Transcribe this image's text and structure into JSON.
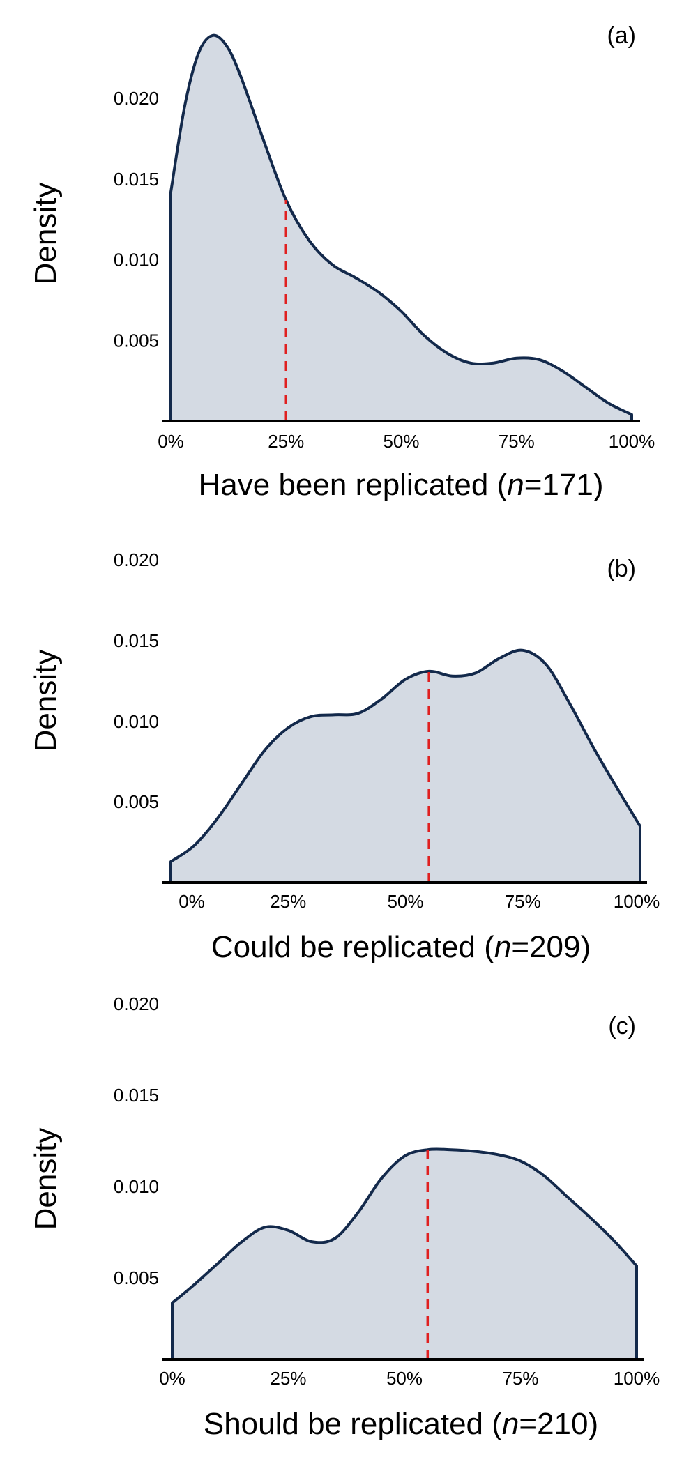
{
  "chart_data": [
    {
      "type": "area",
      "panel_label": "(a)",
      "ylabel": "Density",
      "xlabel_prefix": "Have been replicated (",
      "xlabel_italic": "n",
      "xlabel_suffix": "=171)",
      "xticks": [
        "0%",
        "25%",
        "50%",
        "75%",
        "100%"
      ],
      "ytick_values": [
        0.005,
        0.01,
        0.015,
        0.02
      ],
      "yticks": [
        "0.005",
        "0.010",
        "0.015",
        "0.020"
      ],
      "ylim": [
        0,
        0.024
      ],
      "median": 25,
      "fill": "#d4dae3",
      "line_color": "#13294b",
      "median_color": "#e02020",
      "x": [
        0,
        3,
        6,
        9,
        12,
        15,
        20,
        25,
        30,
        35,
        40,
        45,
        50,
        55,
        60,
        65,
        70,
        75,
        80,
        85,
        90,
        95,
        100
      ],
      "y": [
        0.0142,
        0.0195,
        0.0228,
        0.0239,
        0.0233,
        0.0215,
        0.0175,
        0.0137,
        0.0112,
        0.0097,
        0.0089,
        0.008,
        0.0068,
        0.0053,
        0.0042,
        0.0036,
        0.0036,
        0.0039,
        0.0038,
        0.0031,
        0.0021,
        0.0011,
        0.0004
      ]
    },
    {
      "type": "area",
      "panel_label": "(b)",
      "ylabel": "Density",
      "xlabel_prefix": "Could be replicated (",
      "xlabel_italic": "n",
      "xlabel_suffix": "=209)",
      "xticks": [
        "0%",
        "25%",
        "50%",
        "75%",
        "100%"
      ],
      "ytick_values": [
        0.005,
        0.01,
        0.015,
        0.02
      ],
      "yticks": [
        "0.005",
        "0.010",
        "0.015",
        "0.020"
      ],
      "ylim": [
        0,
        0.024
      ],
      "median": 55,
      "fill": "#d4dae3",
      "line_color": "#13294b",
      "median_color": "#e02020",
      "x": [
        0,
        5,
        10,
        15,
        20,
        25,
        30,
        35,
        40,
        45,
        50,
        55,
        60,
        65,
        70,
        75,
        80,
        85,
        90,
        95,
        100
      ],
      "y": [
        0.0013,
        0.0023,
        0.004,
        0.0061,
        0.0082,
        0.0096,
        0.0103,
        0.0104,
        0.0105,
        0.0114,
        0.0126,
        0.0131,
        0.0128,
        0.013,
        0.0139,
        0.0144,
        0.0135,
        0.0111,
        0.0084,
        0.0059,
        0.0035
      ]
    },
    {
      "type": "area",
      "panel_label": "(c)",
      "ylabel": "Density",
      "xlabel_prefix": "Should be replicated (",
      "xlabel_italic": "n",
      "xlabel_suffix": "=210)",
      "xticks": [
        "0%",
        "25%",
        "50%",
        "75%",
        "100%"
      ],
      "ytick_values": [
        0.005,
        0.01,
        0.015,
        0.02
      ],
      "yticks": [
        "0.005",
        "0.010",
        "0.015",
        "0.020"
      ],
      "ylim": [
        0,
        0.024
      ],
      "median": 55,
      "fill": "#d4dae3",
      "line_color": "#13294b",
      "median_color": "#e02020",
      "x": [
        0,
        5,
        10,
        15,
        20,
        25,
        30,
        35,
        40,
        45,
        50,
        55,
        60,
        65,
        70,
        75,
        80,
        85,
        90,
        95,
        100
      ],
      "y": [
        0.0035,
        0.0047,
        0.006,
        0.0073,
        0.0082,
        0.008,
        0.0073,
        0.0075,
        0.0091,
        0.0112,
        0.0126,
        0.013,
        0.013,
        0.0129,
        0.0127,
        0.0123,
        0.0114,
        0.0101,
        0.0088,
        0.0074,
        0.0058
      ]
    }
  ]
}
